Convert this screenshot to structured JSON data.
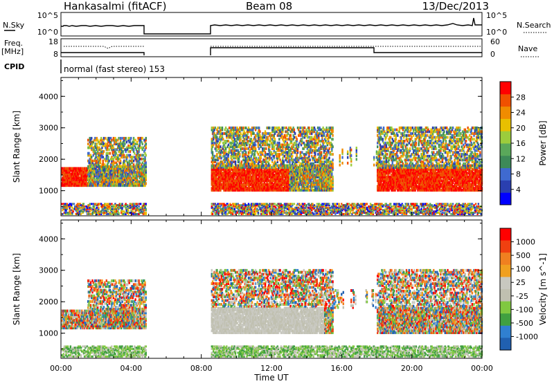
{
  "header": {
    "station": "Hankasalmi (fitACF)",
    "beam": "Beam 08",
    "date": "13/Dec/2013"
  },
  "nsky": {
    "label": "N.Sky",
    "ticks_left": [
      "10^5",
      "10^0"
    ],
    "ticks_right": [
      "10^5",
      "10^0"
    ],
    "right_label": "N.Search"
  },
  "freq": {
    "label_line1": "Freq.",
    "label_line2": "[MHz]",
    "ticks_left": [
      "18",
      "8"
    ],
    "ticks_right": [
      "60",
      "0"
    ],
    "right_label": "Nave"
  },
  "cpid": {
    "label": "CPID",
    "text": "normal (fast stereo) 153"
  },
  "colors": {
    "power": [
      "#0000ff",
      "#2a3fb0",
      "#3f6ad0",
      "#3d8a58",
      "#5aa85a",
      "#9ccc3c",
      "#e8c000",
      "#f08c00",
      "#f05000",
      "#ff0000"
    ],
    "velocity": [
      "#2060b0",
      "#3080d0",
      "#40a040",
      "#80c840",
      "#c0c0b0",
      "#c8c8c0",
      "#f0a020",
      "#f08020",
      "#f04010",
      "#ff0000"
    ]
  },
  "chart_data": [
    {
      "type": "heatmap",
      "panel": "power",
      "ylabel": "Slant Range [km]",
      "ylim": [
        200,
        4600
      ],
      "yticks": [
        1000,
        2000,
        3000,
        4000
      ],
      "xlim": [
        0,
        24
      ],
      "colorbar": {
        "label": "Power [dB]",
        "ticks": [
          "4",
          "8",
          "12",
          "16",
          "20",
          "24",
          "28"
        ],
        "range": [
          0,
          30
        ]
      }
    },
    {
      "type": "heatmap",
      "panel": "velocity",
      "ylabel": "Slant Range [km]",
      "ylim": [
        200,
        4600
      ],
      "yticks": [
        1000,
        2000,
        3000,
        4000
      ],
      "xlim": [
        0,
        24
      ],
      "xlabel": "Time UT",
      "xticks": [
        "00:00",
        "04:00",
        "08:00",
        "12:00",
        "16:00",
        "20:00",
        "00:00"
      ],
      "colorbar": {
        "label": "Velocity [m s^-1]",
        "ticks": [
          "1000",
          "500",
          "100",
          "25",
          "-25",
          "-100",
          "-500",
          "-1000"
        ]
      }
    }
  ]
}
